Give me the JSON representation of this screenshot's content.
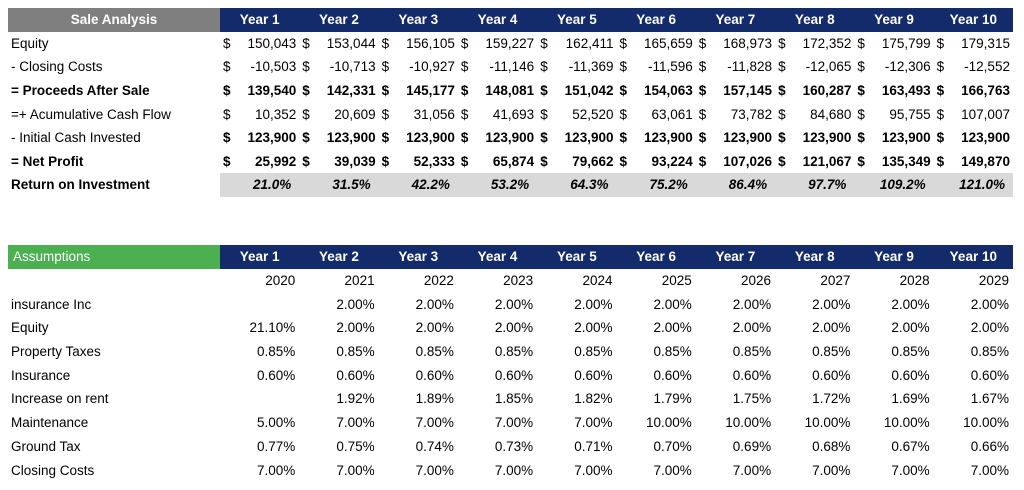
{
  "years": [
    "Year 1",
    "Year 2",
    "Year 3",
    "Year 4",
    "Year 5",
    "Year 6",
    "Year 7",
    "Year 8",
    "Year 9",
    "Year 10"
  ],
  "sale": {
    "title": "Sale Analysis",
    "rows": [
      {
        "label": "Equity",
        "bold": false,
        "cur": [
          "$",
          "$",
          "$",
          "$",
          "$",
          "$",
          "$",
          "$",
          "$",
          "$"
        ],
        "values": [
          "150,043",
          "153,044",
          "156,105",
          "159,227",
          "162,411",
          "165,659",
          "168,973",
          "172,352",
          "175,799",
          "179,315"
        ]
      },
      {
        "label": "- Closing Costs",
        "bold": false,
        "cur": [
          "$",
          "$",
          "$",
          "$",
          "$",
          "$",
          "$",
          "$",
          "$",
          "$"
        ],
        "values": [
          "-10,503",
          "-10,713",
          "-10,927",
          "-11,146",
          "-11,369",
          "-11,596",
          "-11,828",
          "-12,065",
          "-12,306",
          "-12,552"
        ]
      },
      {
        "label": "= Proceeds After Sale",
        "bold": true,
        "cur": [
          "$",
          "$",
          "$",
          "$",
          "$",
          "$",
          "$",
          "$",
          "$",
          "$"
        ],
        "values": [
          "139,540",
          "142,331",
          "145,177",
          "148,081",
          "151,042",
          "154,063",
          "157,145",
          "160,287",
          "163,493",
          "166,763"
        ]
      },
      {
        "label": "=+ Acumulative Cash Flow",
        "bold": false,
        "cur": [
          "$",
          "$",
          "$",
          "$",
          "$",
          "$",
          "$",
          "$",
          "$",
          "$"
        ],
        "values": [
          "10,352",
          "20,609",
          "31,056",
          "41,693",
          "52,520",
          "63,061",
          "73,782",
          "84,680",
          "95,755",
          "107,007"
        ]
      },
      {
        "label": "- Initial Cash Invested",
        "bold": false,
        "cur": [
          "$",
          "$",
          "$",
          "$",
          "$",
          "$",
          "$",
          "$",
          "$",
          "$"
        ],
        "values": [
          "123,900",
          "123,900",
          "123,900",
          "123,900",
          "123,900",
          "123,900",
          "123,900",
          "123,900",
          "123,900",
          "123,900"
        ],
        "bold_values": true
      },
      {
        "label": "= Net Profit",
        "bold": true,
        "cur": [
          "$",
          "$",
          "$",
          "$",
          "$",
          "$",
          "$",
          "$",
          "$",
          "$"
        ],
        "values": [
          "25,992",
          "39,039",
          "52,333",
          "65,874",
          "79,662",
          "93,224",
          "107,026",
          "121,067",
          "135,349",
          "149,870"
        ]
      }
    ],
    "roi": {
      "label": "Return on Investment",
      "values": [
        "21.0%",
        "31.5%",
        "42.2%",
        "53.2%",
        "64.3%",
        "75.2%",
        "86.4%",
        "97.7%",
        "109.2%",
        "121.0%"
      ]
    }
  },
  "assumptions": {
    "title": "Assumptions",
    "calendar_years": [
      "2020",
      "2021",
      "2022",
      "2023",
      "2024",
      "2025",
      "2026",
      "2027",
      "2028",
      "2029"
    ],
    "rows": [
      {
        "label": "insurance Inc",
        "values": [
          "",
          "2.00%",
          "2.00%",
          "2.00%",
          "2.00%",
          "2.00%",
          "2.00%",
          "2.00%",
          "2.00%",
          "2.00%"
        ]
      },
      {
        "label": "Equity",
        "values": [
          "21.10%",
          "2.00%",
          "2.00%",
          "2.00%",
          "2.00%",
          "2.00%",
          "2.00%",
          "2.00%",
          "2.00%",
          "2.00%"
        ]
      },
      {
        "label": "Property Taxes",
        "values": [
          "0.85%",
          "0.85%",
          "0.85%",
          "0.85%",
          "0.85%",
          "0.85%",
          "0.85%",
          "0.85%",
          "0.85%",
          "0.85%"
        ]
      },
      {
        "label": "Insurance",
        "values": [
          "0.60%",
          "0.60%",
          "0.60%",
          "0.60%",
          "0.60%",
          "0.60%",
          "0.60%",
          "0.60%",
          "0.60%",
          "0.60%"
        ]
      },
      {
        "label": "Increase on rent",
        "values": [
          "",
          "1.92%",
          "1.89%",
          "1.85%",
          "1.82%",
          "1.79%",
          "1.75%",
          "1.72%",
          "1.69%",
          "1.67%"
        ]
      },
      {
        "label": "Maintenance",
        "values": [
          "5.00%",
          "7.00%",
          "7.00%",
          "7.00%",
          "7.00%",
          "10.00%",
          "10.00%",
          "10.00%",
          "10.00%",
          "10.00%"
        ]
      },
      {
        "label": "Ground Tax",
        "values": [
          "0.77%",
          "0.75%",
          "0.74%",
          "0.73%",
          "0.71%",
          "0.70%",
          "0.69%",
          "0.68%",
          "0.67%",
          "0.66%"
        ]
      },
      {
        "label": "Closing Costs",
        "values": [
          "7.00%",
          "7.00%",
          "7.00%",
          "7.00%",
          "7.00%",
          "7.00%",
          "7.00%",
          "7.00%",
          "7.00%",
          "7.00%"
        ]
      }
    ]
  },
  "colors": {
    "header_navy": "#132a6b",
    "sale_title_gray": "#7f7f7f",
    "assumptions_green": "#4caf50",
    "roi_fill": "#d9d9d9"
  }
}
